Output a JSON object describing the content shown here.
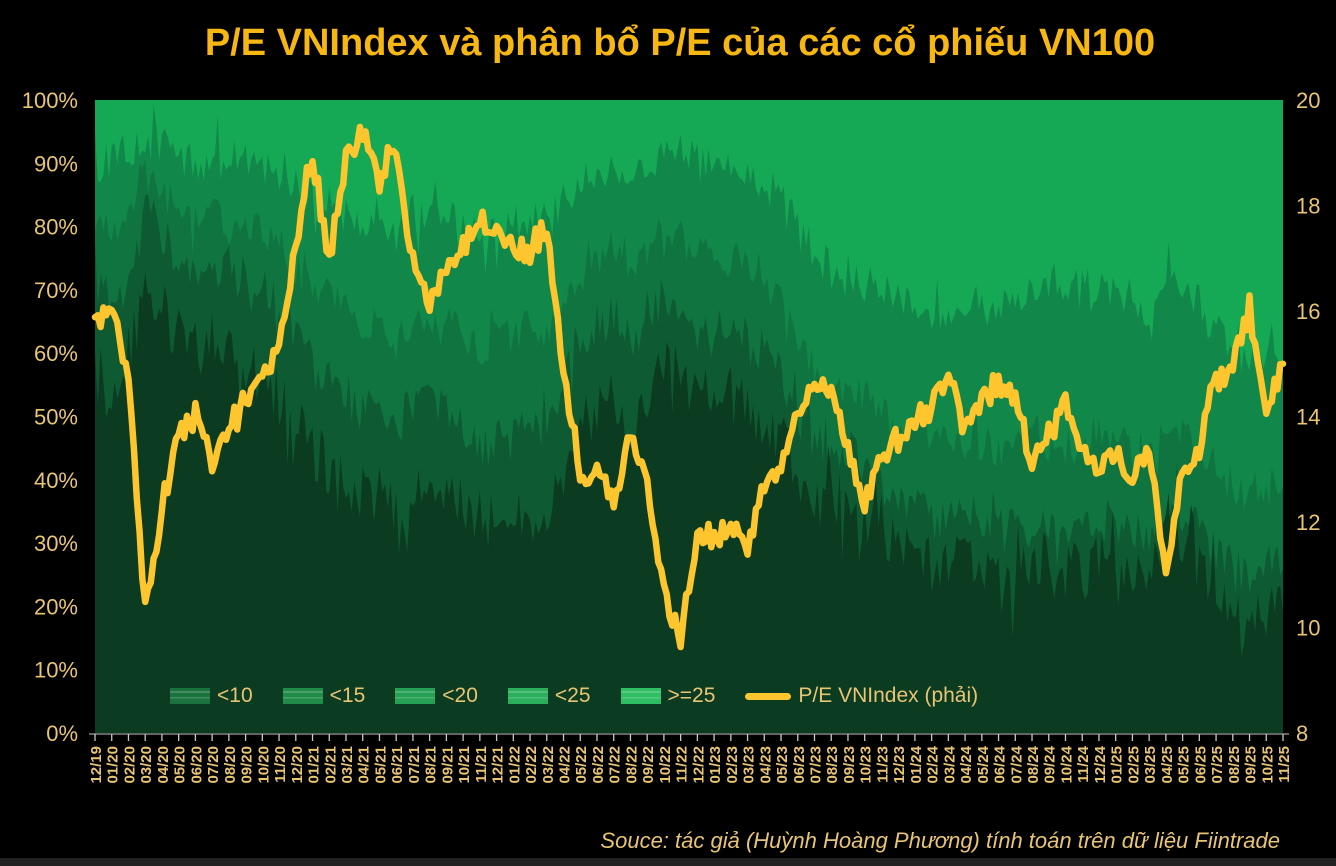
{
  "title": "P/E VNIndex và phân bổ P/E của các cổ phiếu VN100",
  "source_note": "Souce: tác giả (Huỳnh Hoàng Phương) tính toán trên dữ liệu Fiintrade",
  "colors": {
    "background": "#000000",
    "title_text": "#f7b712",
    "axis_text": "#e8c475",
    "tick_mark": "#c9c9c9",
    "line": "#fec62e",
    "band_lt10": "#0b3b20",
    "band_lt15": "#0d5a33",
    "band_lt20": "#0f7440",
    "band_lt25": "#11874a",
    "band_ge25": "#15a855"
  },
  "legend": {
    "items": [
      {
        "label": "<10",
        "color": "#1a733c",
        "type": "area"
      },
      {
        "label": "<15",
        "color": "#218c49",
        "type": "area"
      },
      {
        "label": "<20",
        "color": "#26a055",
        "type": "area"
      },
      {
        "label": "<25",
        "color": "#2baf5c",
        "type": "area"
      },
      {
        "label": ">=25",
        "color": "#30be64",
        "type": "area"
      },
      {
        "label": "P/E VNIndex (phải)",
        "color": "#fec62e",
        "type": "line"
      }
    ]
  },
  "axes": {
    "left_ticks": [
      "0%",
      "10%",
      "20%",
      "30%",
      "40%",
      "50%",
      "60%",
      "70%",
      "80%",
      "90%",
      "100%"
    ],
    "right_ticks": [
      "8",
      "10",
      "12",
      "14",
      "16",
      "18",
      "20"
    ]
  },
  "chart_data": {
    "type": "area",
    "stacking": "percent",
    "title": "P/E VNIndex và phân bổ P/E của các cổ phiếu VN100",
    "legend_position": "bottom-inside",
    "grid": false,
    "x": [
      "12/19",
      "01/20",
      "02/20",
      "03/20",
      "04/20",
      "05/20",
      "06/20",
      "07/20",
      "08/20",
      "09/20",
      "10/20",
      "11/20",
      "12/20",
      "01/21",
      "02/21",
      "03/21",
      "04/21",
      "05/21",
      "06/21",
      "07/21",
      "08/21",
      "09/21",
      "10/21",
      "11/21",
      "12/21",
      "01/22",
      "02/22",
      "03/22",
      "04/22",
      "05/22",
      "06/22",
      "07/22",
      "08/22",
      "09/22",
      "10/22",
      "11/22",
      "12/22",
      "01/23",
      "02/23",
      "03/23",
      "04/23",
      "05/23",
      "06/23",
      "07/23",
      "08/23",
      "09/23",
      "10/23",
      "11/23",
      "12/23",
      "01/24",
      "02/24",
      "03/24",
      "04/24",
      "05/24",
      "06/24",
      "07/24",
      "08/24",
      "09/24",
      "10/24",
      "11/24",
      "12/24",
      "01/25",
      "02/25",
      "03/25",
      "04/25",
      "05/25",
      "06/25",
      "07/25",
      "08/25",
      "09/25",
      "10/25",
      "11/25"
    ],
    "cumulative_share_pct": {
      "note": "share of VN100 stocks with P/E below threshold, cumulative, left axis %",
      "lt10": [
        56,
        54,
        57,
        72,
        68,
        62,
        60,
        62,
        61,
        59,
        57,
        53,
        48,
        44,
        42,
        40,
        37,
        38,
        34,
        38,
        38,
        37,
        35,
        31,
        33,
        34,
        35,
        34,
        42,
        50,
        52,
        54,
        50,
        54,
        58,
        56,
        54,
        52,
        53,
        52,
        50,
        46,
        42,
        38,
        36,
        38,
        35,
        33,
        31,
        29,
        27,
        26,
        28,
        26,
        25,
        25,
        27,
        26,
        25,
        26,
        27,
        26,
        25,
        24,
        30,
        28,
        25,
        22,
        19,
        18,
        19,
        19
      ],
      "lt15": [
        70,
        69,
        71,
        82,
        79,
        75,
        73,
        74,
        73,
        72,
        70,
        67,
        63,
        58,
        56,
        54,
        50,
        52,
        48,
        52,
        52,
        51,
        49,
        45,
        47,
        48,
        49,
        48,
        55,
        62,
        64,
        66,
        62,
        65,
        68,
        66,
        64,
        62,
        63,
        62,
        60,
        56,
        51,
        46,
        44,
        46,
        42,
        40,
        38,
        36,
        34,
        33,
        35,
        33,
        32,
        32,
        34,
        33,
        32,
        33,
        34,
        33,
        32,
        31,
        37,
        35,
        32,
        29,
        26,
        25,
        26,
        26
      ],
      "lt20": [
        80,
        79,
        81,
        88,
        86,
        83,
        81,
        82,
        81,
        80,
        79,
        77,
        74,
        70,
        69,
        67,
        64,
        66,
        62,
        66,
        66,
        65,
        63,
        60,
        62,
        63,
        64,
        63,
        68,
        73,
        75,
        77,
        73,
        76,
        79,
        78,
        76,
        74,
        75,
        74,
        72,
        68,
        63,
        58,
        55,
        57,
        53,
        51,
        49,
        48,
        47,
        46,
        48,
        46,
        45,
        45,
        47,
        46,
        45,
        46,
        47,
        46,
        45,
        44,
        50,
        48,
        45,
        42,
        39,
        38,
        39,
        39
      ],
      "lt25": [
        90,
        90,
        91,
        94,
        93,
        91,
        90,
        91,
        90,
        90,
        89,
        88,
        86,
        84,
        83,
        82,
        80,
        82,
        79,
        82,
        82,
        81,
        80,
        78,
        79,
        80,
        81,
        80,
        84,
        87,
        88,
        89,
        87,
        89,
        91,
        92,
        90,
        89,
        89,
        88,
        87,
        84,
        80,
        76,
        73,
        75,
        71,
        70,
        69,
        68,
        67,
        66,
        69,
        68,
        67,
        68,
        71,
        70,
        69,
        70,
        71,
        70,
        69,
        67,
        73,
        71,
        68,
        64,
        60,
        58,
        60,
        57
      ],
      "total": 100
    },
    "line_series": {
      "name": "P/E VNIndex (phải)",
      "axis": "right",
      "values": [
        15.8,
        16.1,
        14.6,
        10.3,
        12.3,
        13.6,
        14.2,
        13.1,
        13.9,
        14.3,
        14.8,
        15.3,
        17.2,
        19.0,
        17.0,
        18.9,
        19.4,
        18.5,
        19.1,
        16.9,
        16.2,
        16.7,
        17.2,
        17.8,
        17.4,
        17.2,
        17.1,
        17.5,
        15.0,
        12.6,
        13.2,
        12.3,
        13.6,
        12.7,
        10.7,
        9.8,
        11.8,
        11.7,
        11.9,
        11.5,
        12.6,
        13.1,
        14.1,
        14.6,
        14.4,
        13.4,
        12.3,
        13.3,
        13.5,
        14.0,
        14.1,
        14.9,
        13.7,
        14.3,
        14.5,
        14.4,
        13.1,
        13.7,
        14.2,
        13.3,
        13.0,
        13.3,
        12.7,
        13.4,
        11.0,
        12.8,
        13.4,
        14.6,
        15.0,
        16.0,
        14.2,
        15.0
      ]
    },
    "left_axis": {
      "min": 0,
      "max": 100,
      "step": 10,
      "format": "percent"
    },
    "right_axis": {
      "min": 8,
      "max": 20,
      "step": 2
    }
  }
}
